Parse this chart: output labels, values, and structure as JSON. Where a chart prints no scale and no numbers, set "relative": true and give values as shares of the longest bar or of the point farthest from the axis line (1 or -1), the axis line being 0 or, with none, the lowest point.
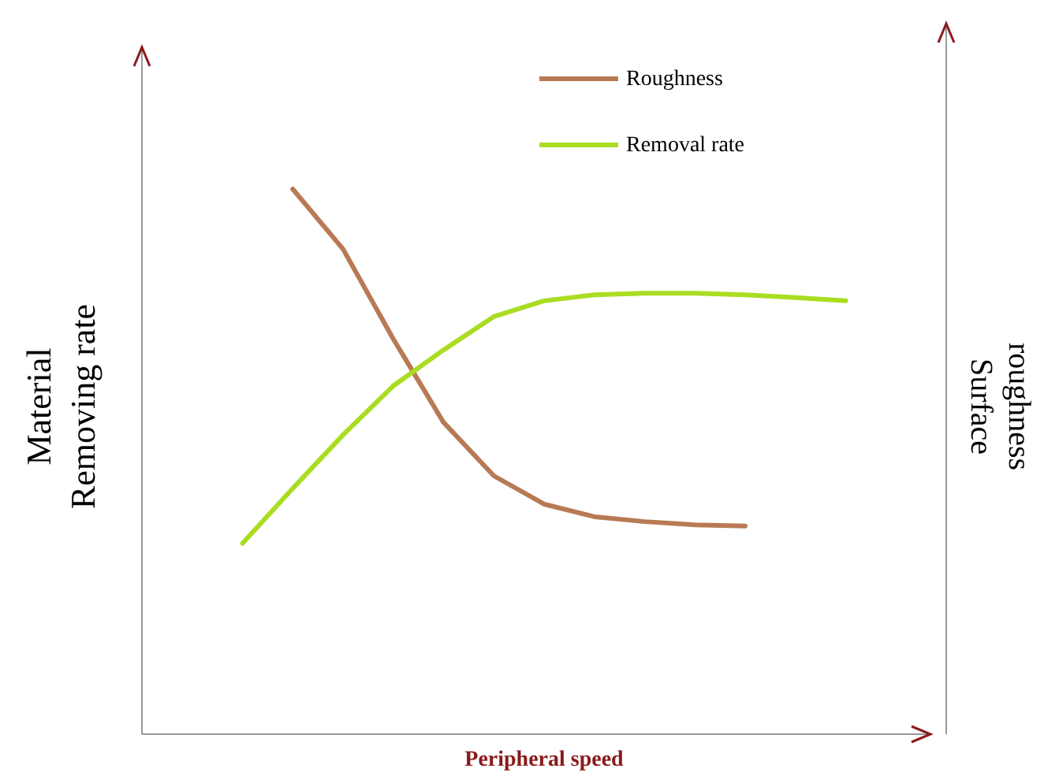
{
  "chart_data": {
    "type": "line",
    "relative": true,
    "xlabel": "Peripheral speed",
    "ylabel": "Material Removing rate",
    "y2label": "Surface roughness",
    "categories": [
      null,
      null,
      null,
      null,
      null,
      null,
      null,
      null,
      null,
      null,
      null,
      null,
      null,
      null,
      null,
      null,
      null
    ],
    "legend": "top",
    "line_style": "solid",
    "series": [
      {
        "name": "Roughness",
        "color": "#b87a55",
        "values": [
          null,
          null,
          null,
          1,
          0.89,
          0.725,
          0.572,
          0.474,
          0.422,
          0.399,
          0.39,
          0.384,
          0.382,
          null,
          null,
          null,
          null
        ]
      },
      {
        "name": "Removal rate",
        "color": "#aadd22",
        "values": [
          null,
          null,
          0.35,
          0.451,
          0.549,
          0.639,
          0.705,
          0.766,
          0.795,
          0.806,
          0.809,
          0.809,
          0.806,
          0.801,
          0.795,
          null,
          null
        ]
      }
    ]
  }
}
